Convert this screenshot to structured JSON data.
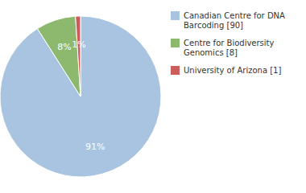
{
  "chart_data": {
    "type": "pie",
    "categories": [
      "Canadian Centre for DNA\nBarcoding [90]",
      "Centre for Biodiversity\nGenomics [8]",
      "University of Arizona [1]"
    ],
    "values": [
      91,
      8,
      1
    ],
    "value_labels": [
      "91%",
      "8%",
      "1%"
    ],
    "colors": [
      "#a8c4e0",
      "#8db96e",
      "#cd5c5c"
    ],
    "data_labels": true,
    "legend": "right"
  }
}
